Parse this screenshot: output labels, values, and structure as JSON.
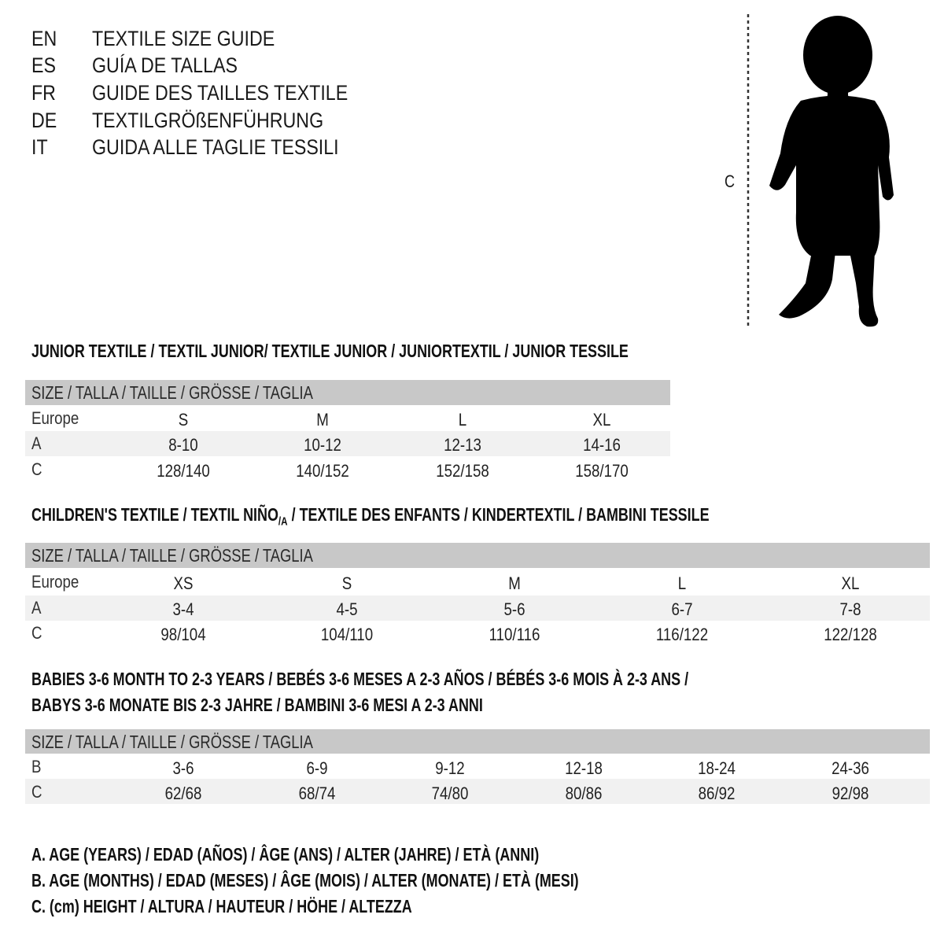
{
  "titles": [
    {
      "code": "EN",
      "text": "TEXTILE SIZE GUIDE"
    },
    {
      "code": "ES",
      "text": "GUÍA DE TALLAS"
    },
    {
      "code": "FR",
      "text": "GUIDE DES TAILLES TEXTILE"
    },
    {
      "code": "DE",
      "text": "TEXTILGRÖßENFÜHRUNG"
    },
    {
      "code": "IT",
      "text": "GUIDA ALLE TAGLIE TESSILI"
    }
  ],
  "figure": {
    "measure_label": "C",
    "icon": "child-silhouette"
  },
  "junior": {
    "title": "JUNIOR TEXTILE / TEXTIL JUNIOR/ TEXTILE JUNIOR / JUNIORTEXTIL / JUNIOR TESSILE",
    "header": "SIZE / TALLA / TAILLE / GRÖSSE / TAGLIA",
    "rows": [
      {
        "label": "Europe",
        "values": [
          "S",
          "M",
          "L",
          "XL"
        ]
      },
      {
        "label": "A",
        "values": [
          "8-10",
          "10-12",
          "12-13",
          "14-16"
        ]
      },
      {
        "label": "C",
        "values": [
          "128/140",
          "140/152",
          "152/158",
          "158/170"
        ]
      }
    ]
  },
  "children": {
    "title_pre": "CHILDREN'S TEXTILE / TEXTIL NIÑO",
    "title_sub": "/A",
    "title_post": " / TEXTILE DES ENFANTS / KINDERTEXTIL / BAMBINI TESSILE",
    "header": "SIZE / TALLA / TAILLE / GRÖSSE / TAGLIA",
    "rows": [
      {
        "label": "Europe",
        "values": [
          "XS",
          "S",
          "M",
          "L",
          "XL"
        ]
      },
      {
        "label": "A",
        "values": [
          "3-4",
          "4-5",
          "5-6",
          "6-7",
          "7-8"
        ]
      },
      {
        "label": "C",
        "values": [
          "98/104",
          "104/110",
          "110/116",
          "116/122",
          "122/128"
        ]
      }
    ]
  },
  "babies": {
    "title_line1": "BABIES 3-6 MONTH TO 2-3 YEARS / BEBÉS 3-6 MESES A 2-3 AÑOS / BÉBÉS 3-6 MOIS À 2-3 ANS /",
    "title_line2": "BABYS 3-6 MONATE BIS 2-3 JAHRE / BAMBINI 3-6 MESI A 2-3 ANNI",
    "header": "SIZE / TALLA / TAILLE / GRÖSSE / TAGLIA",
    "rows": [
      {
        "label": "B",
        "values": [
          "3-6",
          "6-9",
          "9-12",
          "12-18",
          "18-24",
          "24-36"
        ]
      },
      {
        "label": "C",
        "values": [
          "62/68",
          "68/74",
          "74/80",
          "80/86",
          "86/92",
          "92/98"
        ]
      }
    ]
  },
  "legend": [
    "A. AGE (YEARS) / EDAD (AÑOS) / ÂGE (ANS) / ALTER (JAHRE) / ETÀ (ANNI)",
    "B. AGE (MONTHS) / EDAD (MESES) / ÂGE (MOIS) / ALTER (MONATE) / ETÀ (MESI)",
    "C. (cm) HEIGHT / ALTURA / HAUTEUR / HÖHE / ALTEZZA"
  ],
  "colors": {
    "header_band": "#c8c8c8",
    "alt_row": "#f1f1f1",
    "text": "#1a1a1a"
  }
}
